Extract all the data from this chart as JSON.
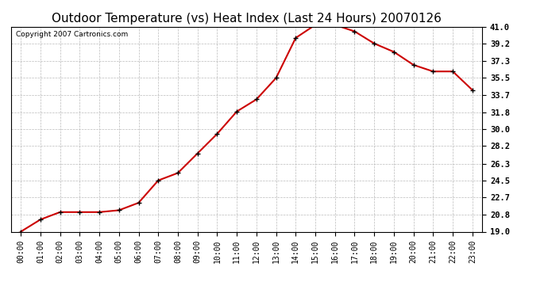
{
  "title": "Outdoor Temperature (vs) Heat Index (Last 24 Hours) 20070126",
  "copyright": "Copyright 2007 Cartronics.com",
  "x_labels": [
    "00:00",
    "01:00",
    "02:00",
    "03:00",
    "04:00",
    "05:00",
    "06:00",
    "07:00",
    "08:00",
    "09:00",
    "10:00",
    "11:00",
    "12:00",
    "13:00",
    "14:00",
    "15:00",
    "16:00",
    "17:00",
    "18:00",
    "19:00",
    "20:00",
    "21:00",
    "22:00",
    "23:00"
  ],
  "y_values": [
    19.0,
    20.3,
    21.1,
    21.1,
    21.1,
    21.3,
    22.1,
    24.5,
    25.3,
    27.4,
    29.5,
    31.9,
    33.2,
    35.5,
    39.8,
    41.2,
    41.2,
    40.5,
    39.2,
    38.3,
    36.9,
    36.2,
    36.2,
    34.2
  ],
  "line_color": "#cc0000",
  "marker_color": "#000000",
  "bg_color": "#ffffff",
  "grid_color": "#bbbbbb",
  "yticks": [
    19.0,
    20.8,
    22.7,
    24.5,
    26.3,
    28.2,
    30.0,
    31.8,
    33.7,
    35.5,
    37.3,
    39.2,
    41.0
  ],
  "ylim": [
    19.0,
    41.0
  ],
  "title_fontsize": 11,
  "copyright_fontsize": 6.5,
  "tick_fontsize": 7,
  "ytick_fontsize": 7.5
}
